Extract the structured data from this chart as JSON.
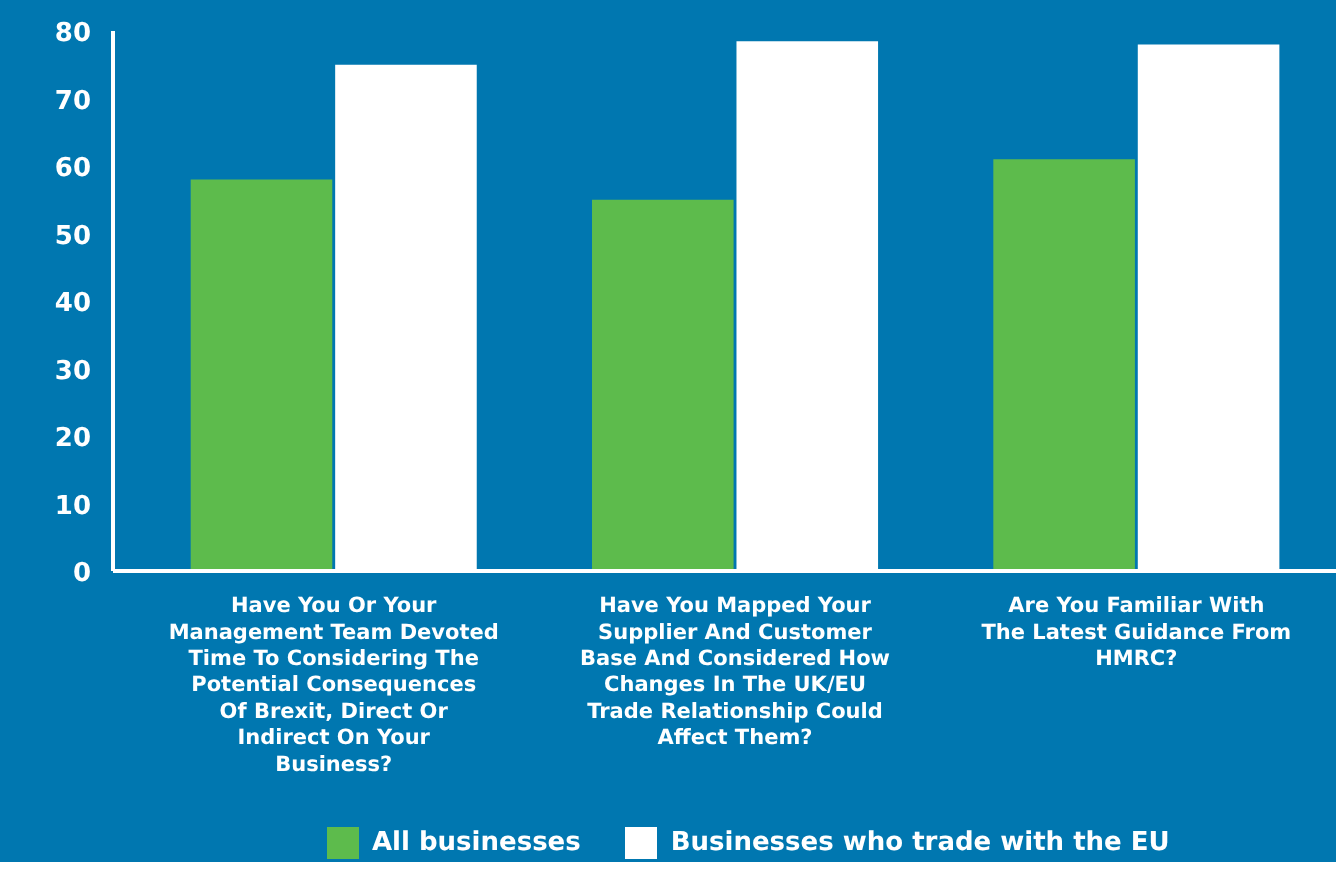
{
  "chart_data": {
    "type": "bar",
    "categories": [
      "Have You Or Your Management Team Devoted Time To Considering The Potential Consequences Of Brexit, Direct Or Indirect On Your Business?",
      "Have You Mapped Your Supplier And Customer Base And Considered How Changes In The UK/EU Trade Relationship Could Affect Them?",
      "Are You Familiar With The Latest Guidance From HMRC?"
    ],
    "series": [
      {
        "name": "All businesses",
        "color": "#5dbb4c",
        "values": [
          58,
          55,
          61
        ]
      },
      {
        "name": "Businesses who trade with the EU",
        "color": "#ffffff",
        "values": [
          75,
          78.5,
          78
        ]
      }
    ],
    "ylim": [
      0,
      80
    ],
    "yticks": [
      0,
      10,
      20,
      30,
      40,
      50,
      60,
      70,
      80
    ],
    "grid": false,
    "legend": "bottom"
  }
}
